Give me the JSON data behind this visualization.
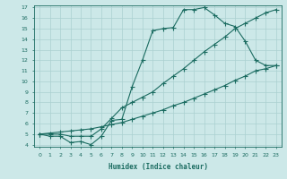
{
  "xlabel": "Humidex (Indice chaleur)",
  "ylabel": "",
  "bg_color": "#cce8e8",
  "line_color": "#1a6b60",
  "grid_color": "#aad0d0",
  "xlim": [
    -0.5,
    23.5
  ],
  "ylim": [
    3.8,
    17.2
  ],
  "xticks": [
    0,
    1,
    2,
    3,
    4,
    5,
    6,
    7,
    8,
    9,
    10,
    11,
    12,
    13,
    14,
    15,
    16,
    17,
    18,
    19,
    20,
    21,
    22,
    23
  ],
  "yticks": [
    4,
    5,
    6,
    7,
    8,
    9,
    10,
    11,
    12,
    13,
    14,
    15,
    16,
    17
  ],
  "line1_x": [
    0,
    1,
    2,
    3,
    4,
    5,
    6,
    7,
    8,
    9,
    10,
    11,
    12,
    13,
    14,
    15,
    16,
    17,
    18,
    19,
    20,
    21,
    22,
    23
  ],
  "line1_y": [
    5.0,
    4.8,
    4.8,
    4.2,
    4.3,
    4.0,
    4.8,
    6.3,
    6.4,
    9.5,
    12.0,
    14.8,
    15.0,
    15.1,
    16.8,
    16.8,
    17.0,
    16.3,
    15.5,
    15.2,
    13.8,
    12.0,
    11.5,
    11.5
  ],
  "line2_x": [
    0,
    1,
    2,
    3,
    4,
    5,
    6,
    7,
    8,
    9,
    10,
    11,
    12,
    13,
    14,
    15,
    16,
    17,
    18,
    19,
    20,
    21,
    22,
    23
  ],
  "line2_y": [
    5.0,
    5.0,
    5.0,
    4.8,
    4.8,
    4.8,
    5.5,
    6.5,
    7.5,
    8.0,
    8.5,
    9.0,
    9.8,
    10.5,
    11.2,
    12.0,
    12.8,
    13.5,
    14.2,
    15.0,
    15.5,
    16.0,
    16.5,
    16.8
  ],
  "line3_x": [
    0,
    1,
    2,
    3,
    4,
    5,
    6,
    7,
    8,
    9,
    10,
    11,
    12,
    13,
    14,
    15,
    16,
    17,
    18,
    19,
    20,
    21,
    22,
    23
  ],
  "line3_y": [
    5.0,
    5.1,
    5.2,
    5.3,
    5.4,
    5.5,
    5.7,
    5.9,
    6.1,
    6.4,
    6.7,
    7.0,
    7.3,
    7.7,
    8.0,
    8.4,
    8.8,
    9.2,
    9.6,
    10.1,
    10.5,
    11.0,
    11.2,
    11.5
  ]
}
